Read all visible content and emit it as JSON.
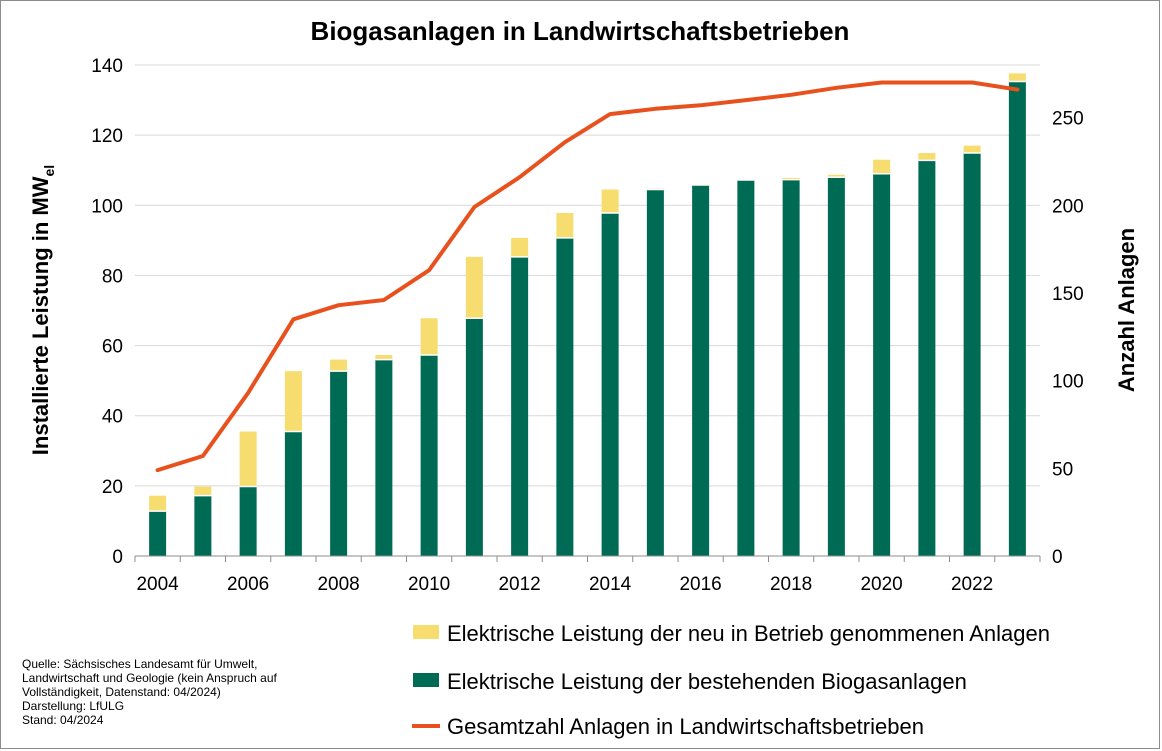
{
  "chart_data": {
    "type": "bar+line",
    "title": "Biogasanlagen  in Landwirtschaftsbetrieben",
    "ylabel_left": "Installierte Leistung in MW",
    "ylabel_left_sub": "el",
    "ylabel_right": "Anzahl Anlagen",
    "years": [
      2004,
      2005,
      2006,
      2007,
      2008,
      2009,
      2010,
      2011,
      2012,
      2013,
      2014,
      2015,
      2016,
      2017,
      2018,
      2019,
      2020,
      2021,
      2022,
      2023
    ],
    "x_tick_labels": [
      "2004",
      "2006",
      "2008",
      "2010",
      "2012",
      "2014",
      "2016",
      "2018",
      "2020",
      "2022"
    ],
    "y_left_ticks": [
      "0",
      "20",
      "40",
      "60",
      "80",
      "100",
      "120",
      "140"
    ],
    "y_left_range": [
      0,
      140
    ],
    "y_right_ticks": [
      "0",
      "50",
      "100",
      "150",
      "200",
      "250"
    ],
    "y_right_range": [
      0,
      280
    ],
    "gridlines": true,
    "series": [
      {
        "name": "Elektrische Leistung der bestehenden Biogasanlagen",
        "type": "stacked-bar",
        "color": "#006b54",
        "values": [
          12.8,
          17.2,
          19.8,
          35.5,
          52.7,
          56,
          57.3,
          67.8,
          85.3,
          90.7,
          97.8,
          104.5,
          105.8,
          107.2,
          107.3,
          108,
          109,
          112.8,
          114.9,
          135.3
        ]
      },
      {
        "name": "Elektrische Leistung der neu in Betrieb genommenen Anlagen",
        "type": "stacked-bar",
        "color": "#f7dc6f",
        "values": [
          4.4,
          2.6,
          15.7,
          17.2,
          3.3,
          1.3,
          10.5,
          17.5,
          5.4,
          7.1,
          6.7,
          0.3,
          0.2,
          0.1,
          0.5,
          0.7,
          4,
          2.1,
          2.1,
          2.3
        ]
      },
      {
        "name": "Gesamtzahl Anlagen in Landwirtschaftsbetrieben",
        "type": "line",
        "axis": "right",
        "color": "#e8511e",
        "values": [
          49,
          57,
          93,
          135,
          143,
          146,
          163,
          199,
          216,
          236,
          252,
          255,
          257,
          260,
          263,
          267,
          270,
          270,
          270,
          266
        ]
      }
    ],
    "legend": {
      "placement": "bottom-right",
      "items": [
        "Elektrische Leistung der neu in Betrieb genommenen Anlagen",
        "Elektrische Leistung der bestehenden Biogasanlagen",
        "Gesamtzahl Anlagen in Landwirtschaftsbetrieben"
      ]
    }
  },
  "source_note": {
    "line1": "Quelle: Sächsisches Landesamt für Umwelt,",
    "line2": "Landwirtschaft und Geologie (kein Anspruch auf",
    "line3": "Vollständigkeit, Datenstand: 04/2024)",
    "line4": "Darstellung: LfULG",
    "line5": "Stand: 04/2024"
  }
}
